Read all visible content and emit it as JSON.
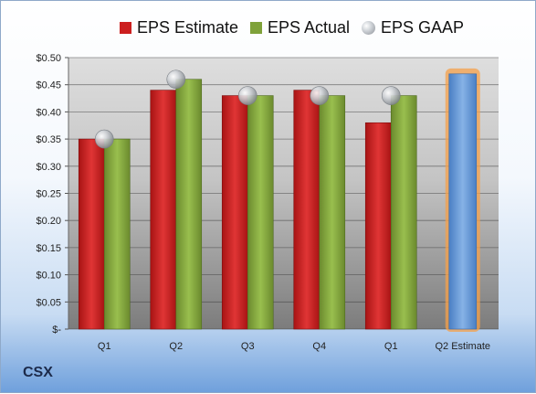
{
  "ticker": "CSX",
  "legend": [
    {
      "label": "EPS Estimate",
      "color": "#cc1f1f"
    },
    {
      "label": "EPS Actual",
      "color": "#7fa23a"
    },
    {
      "label": "EPS GAAP",
      "color": "#b8bcc2"
    }
  ],
  "chart_data": {
    "type": "bar",
    "categories": [
      "Q1",
      "Q2",
      "Q3",
      "Q4",
      "Q1",
      "Q2 Estimate"
    ],
    "series": [
      {
        "name": "EPS Estimate",
        "values": [
          0.35,
          0.44,
          0.43,
          0.44,
          0.38,
          null
        ],
        "color": "#cc1f1f"
      },
      {
        "name": "EPS Actual",
        "values": [
          0.35,
          0.46,
          0.43,
          0.43,
          0.43,
          null
        ],
        "color": "#7fa23a"
      },
      {
        "name": "EPS GAAP",
        "type": "scatter",
        "values": [
          0.35,
          0.46,
          0.43,
          0.43,
          0.43,
          null
        ],
        "color": "#b8bcc2"
      },
      {
        "name": "Q2 Estimate",
        "values": [
          null,
          null,
          null,
          null,
          null,
          0.47
        ],
        "color": "#5b8fd0",
        "highlight": "#f5a04a"
      }
    ],
    "yticks": [
      "$-",
      "$0.05",
      "$0.10",
      "$0.15",
      "$0.20",
      "$0.25",
      "$0.30",
      "$0.35",
      "$0.40",
      "$0.45",
      "$0.50"
    ],
    "ylim": [
      0,
      0.5
    ],
    "grid": true,
    "legend_position": "top"
  }
}
